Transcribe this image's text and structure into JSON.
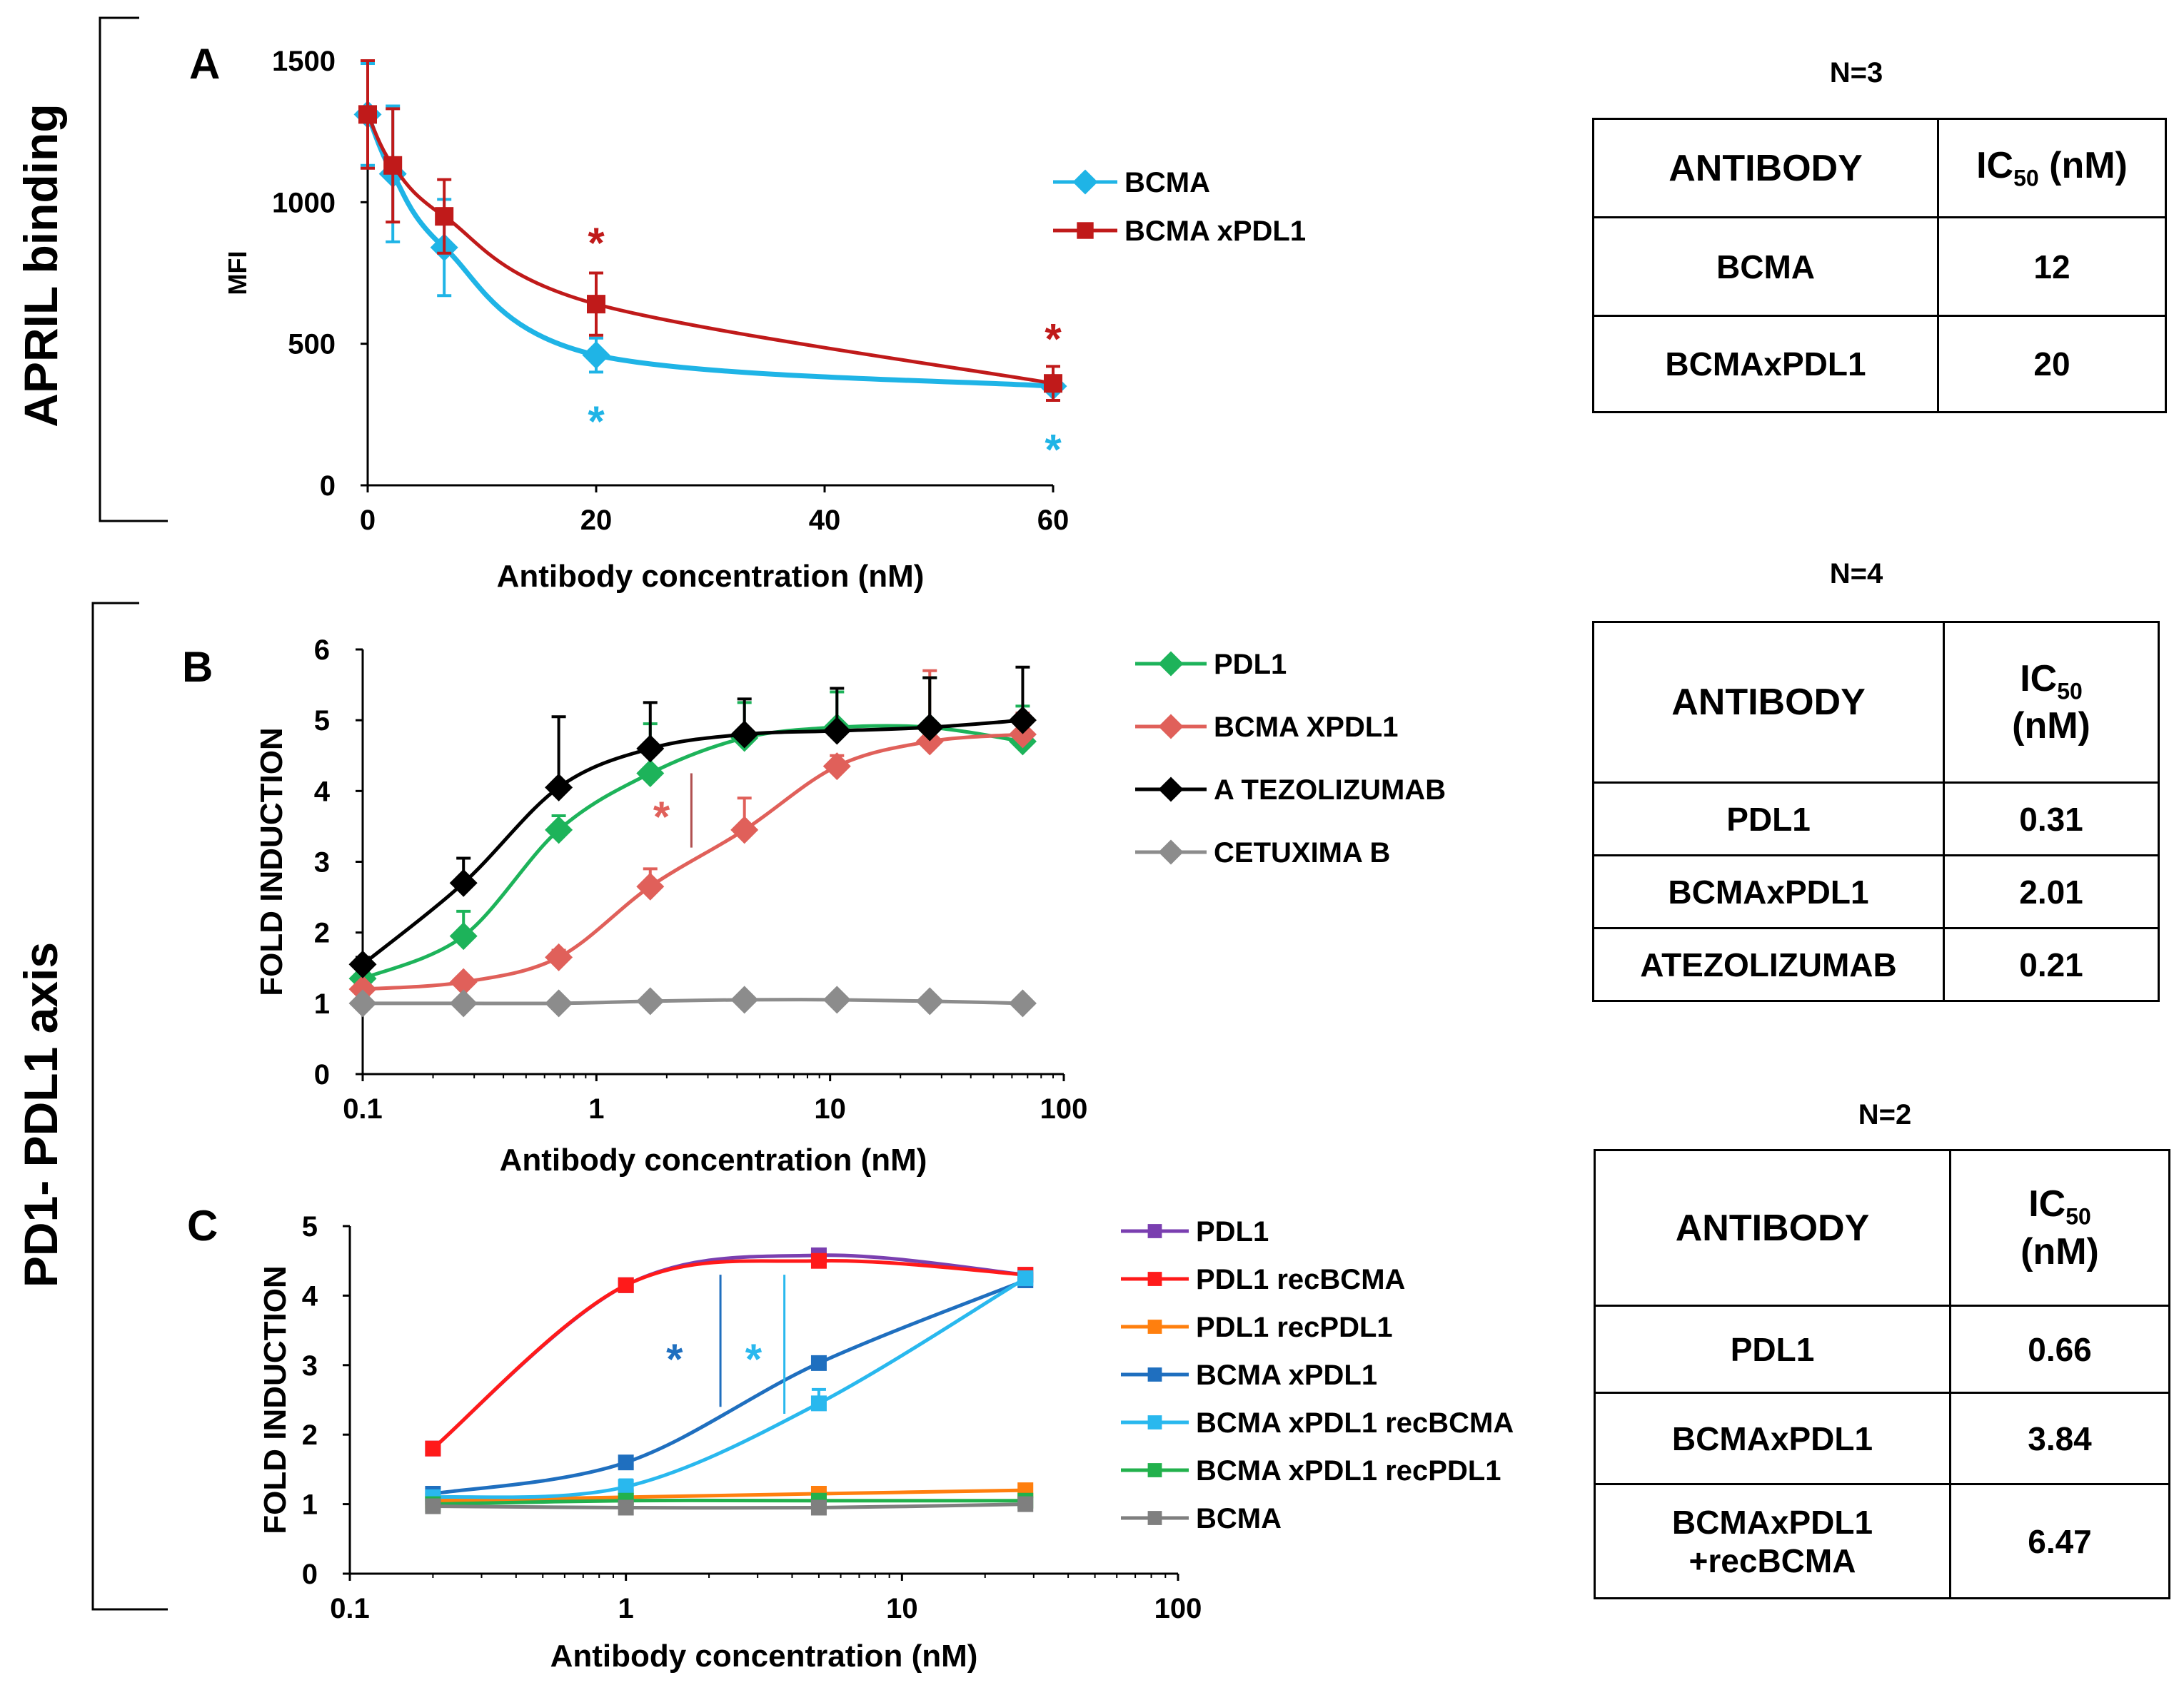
{
  "sections": {
    "april": "APRIL binding",
    "pd1": "PD1- PDL1 axis"
  },
  "colors": {
    "cyan": "#1fb4e6",
    "darkred": "#c01a1a",
    "green": "#1db35a",
    "salmon": "#e0605a",
    "black": "#000000",
    "gray": "#8c8c8c",
    "purple": "#7a3fb0",
    "red": "#ff1a1a",
    "orange": "#ff7f0e",
    "blue": "#1f6fbf",
    "lightblue": "#29b8ee",
    "green2": "#22b14c",
    "gray2": "#7f7f7f"
  },
  "chart_data": [
    {
      "id": "A",
      "type": "line",
      "panel": "A",
      "title": "",
      "xlabel": "Antibody concentration (nM)",
      "ylabel": "MFI",
      "xscale": "linear",
      "xlim": [
        0,
        60
      ],
      "ylim": [
        0,
        1500
      ],
      "xticks": [
        0,
        20,
        40,
        60
      ],
      "xtick_labels": [
        "0",
        "20",
        "40",
        "60"
      ],
      "yticks": [
        0,
        500,
        1000,
        1500
      ],
      "ytick_labels": [
        "0",
        "500",
        "1000",
        "1500"
      ],
      "series": [
        {
          "name": "BCMA",
          "color": "#1fb4e6",
          "marker": "diamond",
          "x": [
            0,
            2.2,
            6.7,
            20,
            60
          ],
          "y": [
            1310,
            1100,
            840,
            460,
            350
          ],
          "err": [
            180,
            240,
            170,
            60,
            20
          ]
        },
        {
          "name": "BCMAxPDL1",
          "color": "#c01a1a",
          "marker": "square",
          "x": [
            0,
            2.2,
            6.7,
            20,
            60
          ],
          "y": [
            1310,
            1130,
            950,
            640,
            360
          ],
          "err": [
            190,
            200,
            130,
            110,
            60
          ]
        }
      ],
      "legend": [
        "BCMA",
        "BCMA xPDL1"
      ],
      "annotations": [
        {
          "text": "*",
          "color": "#c01a1a",
          "x": 20,
          "y": 860
        },
        {
          "text": "*",
          "color": "#1fb4e6",
          "x": 20,
          "y": 230
        },
        {
          "text": "*",
          "color": "#c01a1a",
          "x": 60,
          "y": 520
        },
        {
          "text": "*",
          "color": "#1fb4e6",
          "x": 60,
          "y": 130
        }
      ]
    },
    {
      "id": "B",
      "type": "line",
      "panel": "B",
      "title": "",
      "xlabel": "Antibody concentration (nM)",
      "ylabel": "FOLD INDUCTION",
      "xscale": "log",
      "xlim": [
        0.1,
        100
      ],
      "ylim": [
        0,
        6
      ],
      "xticks": [
        0.1,
        1,
        10,
        100
      ],
      "xtick_labels": [
        "0.1",
        "1",
        "10",
        "100"
      ],
      "yticks": [
        0,
        1,
        2,
        3,
        4,
        5,
        6
      ],
      "ytick_labels": [
        "0",
        "1",
        "2",
        "3",
        "4",
        "5",
        "6"
      ],
      "series": [
        {
          "name": "PDL1",
          "color": "#1db35a",
          "marker": "diamond",
          "x": [
            0.1,
            0.27,
            0.69,
            1.7,
            4.3,
            10.7,
            26.7,
            66.7
          ],
          "y": [
            1.35,
            1.95,
            3.45,
            4.25,
            4.75,
            4.9,
            4.9,
            4.7
          ],
          "err": [
            0.1,
            0.35,
            0.2,
            0.7,
            0.5,
            0.5,
            0.7,
            0.5
          ]
        },
        {
          "name": "BCMAXPDL1",
          "color": "#e0605a",
          "marker": "diamond",
          "x": [
            0.1,
            0.27,
            0.69,
            1.7,
            4.3,
            10.7,
            26.7,
            66.7
          ],
          "y": [
            1.2,
            1.3,
            1.65,
            2.65,
            3.45,
            4.35,
            4.7,
            4.8
          ],
          "err": [
            0.05,
            0.05,
            0.1,
            0.25,
            0.45,
            0.15,
            1.0,
            0.3
          ]
        },
        {
          "name": "ATEZOLIZUMAB",
          "color": "#000000",
          "marker": "diamond",
          "x": [
            0.1,
            0.27,
            0.69,
            1.7,
            4.3,
            10.7,
            26.7,
            66.7
          ],
          "y": [
            1.55,
            2.7,
            4.05,
            4.6,
            4.8,
            4.85,
            4.9,
            5.0
          ],
          "err": [
            0.1,
            0.35,
            1.0,
            0.65,
            0.5,
            0.6,
            0.7,
            0.75
          ]
        },
        {
          "name": "CETUXIMAB",
          "color": "#8c8c8c",
          "marker": "diamond",
          "x": [
            0.1,
            0.27,
            0.69,
            1.7,
            4.3,
            10.7,
            26.7,
            66.7
          ],
          "y": [
            1.0,
            1.0,
            1.0,
            1.03,
            1.05,
            1.05,
            1.03,
            1.0
          ],
          "err": [
            0,
            0,
            0,
            0,
            0,
            0,
            0,
            0
          ]
        }
      ],
      "legend": [
        "PDL1",
        "BCMA XPDL1",
        "A TEZOLIZUMAB",
        "CETUXIMA B"
      ],
      "annotations": [
        {
          "text": "*",
          "color": "#e0605a",
          "x": 1.9,
          "y": 3.65
        }
      ]
    },
    {
      "id": "C",
      "type": "line",
      "panel": "C",
      "title": "",
      "xlabel": "Antibody concentration (nM)",
      "ylabel": "FOLD INDUCTION",
      "xscale": "log",
      "xlim": [
        0.1,
        100
      ],
      "ylim": [
        0,
        5
      ],
      "xticks": [
        0.1,
        1,
        10,
        100
      ],
      "xtick_labels": [
        "0.1",
        "1",
        "10",
        "100"
      ],
      "yticks": [
        0,
        1,
        2,
        3,
        4,
        5
      ],
      "ytick_labels": [
        "0",
        "1",
        "2",
        "3",
        "4",
        "5"
      ],
      "series": [
        {
          "name": "PDL1",
          "color": "#7a3fb0",
          "marker": "square",
          "x": [
            0.2,
            1,
            5,
            28
          ],
          "y": [
            1.8,
            4.15,
            4.58,
            4.3
          ],
          "err": [
            0,
            0,
            0,
            0
          ]
        },
        {
          "name": "PDL1 recBCMA",
          "color": "#ff1a1a",
          "marker": "square",
          "x": [
            0.2,
            1,
            5,
            28
          ],
          "y": [
            1.8,
            4.15,
            4.5,
            4.3
          ],
          "err": [
            0,
            0,
            0,
            0
          ]
        },
        {
          "name": "PDL1 recPDL1",
          "color": "#ff7f0e",
          "marker": "square",
          "x": [
            0.2,
            1,
            5,
            28
          ],
          "y": [
            1.05,
            1.1,
            1.15,
            1.2
          ],
          "err": [
            0,
            0,
            0,
            0
          ]
        },
        {
          "name": "BCMAxPDL1",
          "color": "#1f6fbf",
          "marker": "square",
          "x": [
            0.2,
            1,
            5,
            28
          ],
          "y": [
            1.15,
            1.6,
            3.03,
            4.22
          ],
          "err": [
            0,
            0,
            0,
            0
          ]
        },
        {
          "name": "BCMAxPDL1 recBCMA",
          "color": "#29b8ee",
          "marker": "square",
          "x": [
            0.2,
            1,
            5,
            28
          ],
          "y": [
            1.1,
            1.25,
            2.45,
            4.25
          ],
          "err": [
            0,
            0.1,
            0.2,
            0
          ]
        },
        {
          "name": "BCMAxPDL1 recPDL1",
          "color": "#22b14c",
          "marker": "square",
          "x": [
            0.2,
            1,
            5,
            28
          ],
          "y": [
            1.0,
            1.05,
            1.05,
            1.05
          ],
          "err": [
            0,
            0,
            0,
            0
          ]
        },
        {
          "name": "BCMA",
          "color": "#7f7f7f",
          "marker": "square",
          "x": [
            0.2,
            1,
            5,
            28
          ],
          "y": [
            0.97,
            0.95,
            0.95,
            1.0
          ],
          "err": [
            0,
            0,
            0,
            0
          ]
        }
      ],
      "legend": [
        "PDL1",
        "PDL1 recBCMA",
        "PDL1 recPDL1",
        "BCMA xPDL1",
        "BCMA xPDL1 recBCMA",
        "BCMA xPDL1 recPDL1",
        "BCMA"
      ],
      "annotations": [
        {
          "text": "*",
          "color": "#1f6fbf",
          "x": 1.5,
          "y": 3.1
        },
        {
          "text": "*",
          "color": "#29b8ee",
          "x": 2.9,
          "y": 3.1
        }
      ]
    }
  ],
  "tables": {
    "A": {
      "n_label": "N=3",
      "header": [
        "ANTIBODY",
        "IC",
        "50",
        " (nM)"
      ],
      "rows": [
        [
          "BCMA",
          "12"
        ],
        [
          "BCMAxPDL1",
          "20"
        ]
      ]
    },
    "B": {
      "n_label": "N=4",
      "header": [
        "ANTIBODY",
        "IC",
        "50",
        "(nM)"
      ],
      "rows": [
        [
          "PDL1",
          "0.31"
        ],
        [
          "BCMAxPDL1",
          "2.01"
        ],
        [
          "ATEZOLIZUMAB",
          "0.21"
        ]
      ]
    },
    "C": {
      "n_label": "N=2",
      "header": [
        "ANTIBODY",
        "IC",
        "50",
        "(nM)"
      ],
      "rows": [
        [
          "PDL1",
          "0.66"
        ],
        [
          "BCMAxPDL1",
          "3.84"
        ],
        [
          "BCMAxPDL1",
          "+recBCMA",
          "6.47"
        ]
      ]
    }
  }
}
